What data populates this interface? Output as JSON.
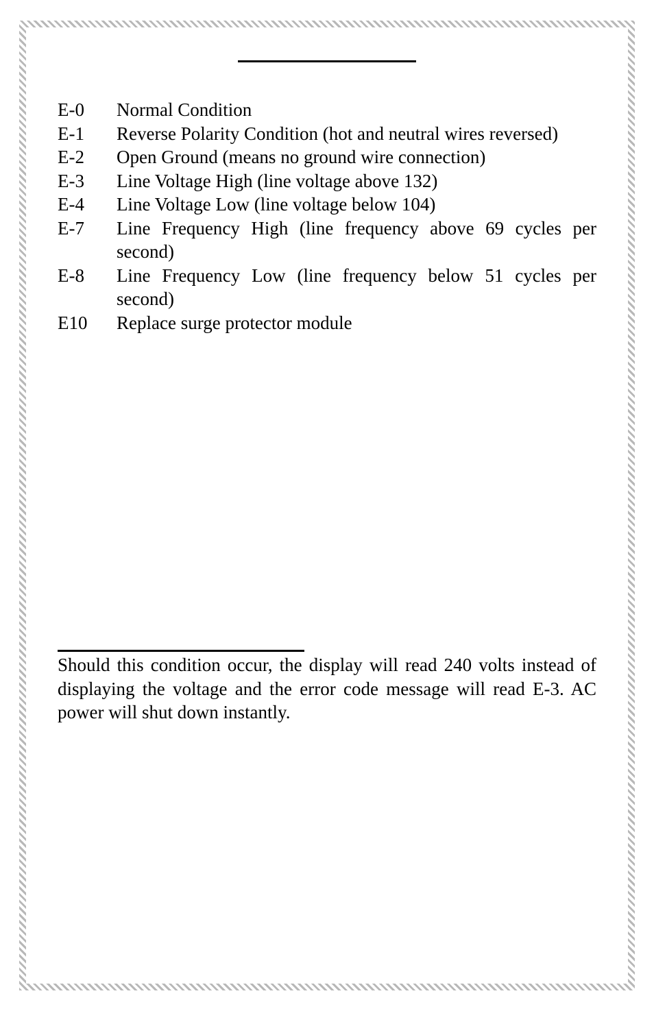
{
  "errors": [
    {
      "code": "E-0",
      "desc": "Normal Condition"
    },
    {
      "code": "E-1",
      "desc": "Reverse Polarity Condition (hot and neutral wires reversed)"
    },
    {
      "code": "E-2",
      "desc": "Open Ground (means no ground wire connection)"
    },
    {
      "code": "E-3",
      "desc": "Line Voltage High (line voltage above 132)"
    },
    {
      "code": "E-4",
      "desc": "Line Voltage Low (line voltage below 104)"
    },
    {
      "code": "E-7",
      "desc": "Line Frequency High (line frequency above 69 cycles per second)"
    },
    {
      "code": "E-8",
      "desc": "Line Frequency Low (line frequency below 51 cycles per second)"
    },
    {
      "code": "E10",
      "desc": "Replace surge protector module"
    }
  ],
  "note": "Should this condition occur, the display will read 240 volts instead of displaying the voltage and the error code message will read E-3. AC power will shut down instantly."
}
